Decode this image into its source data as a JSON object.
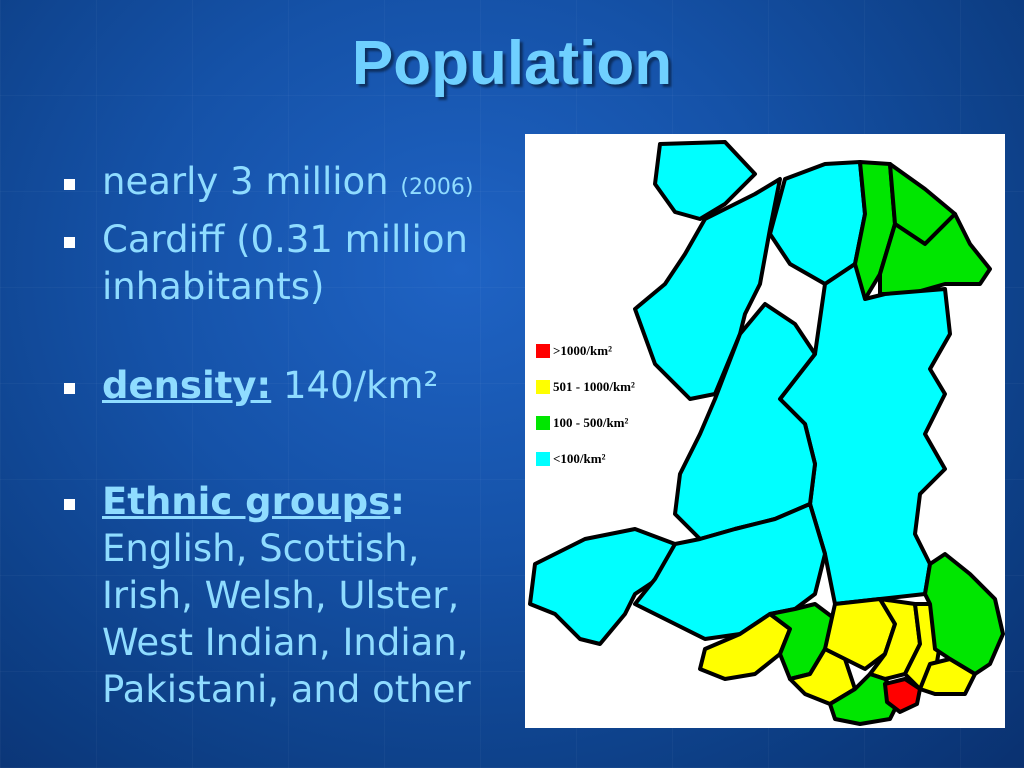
{
  "slide": {
    "title": "Population"
  },
  "bullets": {
    "population": {
      "text": "nearly 3 million",
      "year": "(2006)"
    },
    "cardiff": {
      "text": "Cardiff (0.31 million inhabitants)"
    },
    "density": {
      "label": "density:",
      "value": "140/km²"
    },
    "ethnic": {
      "label": "Ethnic groups",
      "colon": ":",
      "text": "English, Scottish, Irish, Welsh, Ulster, West Indian, Indian, Pakistani, and other"
    }
  },
  "map": {
    "legend": [
      {
        "label": ">1000/km²",
        "color": "#ff0000"
      },
      {
        "label": "501 - 1000/km²",
        "color": "#ffff00"
      },
      {
        "label": "100 - 500/km²",
        "color": "#00e600"
      },
      {
        "label": "<100/km²",
        "color": "#00ffff"
      }
    ]
  }
}
